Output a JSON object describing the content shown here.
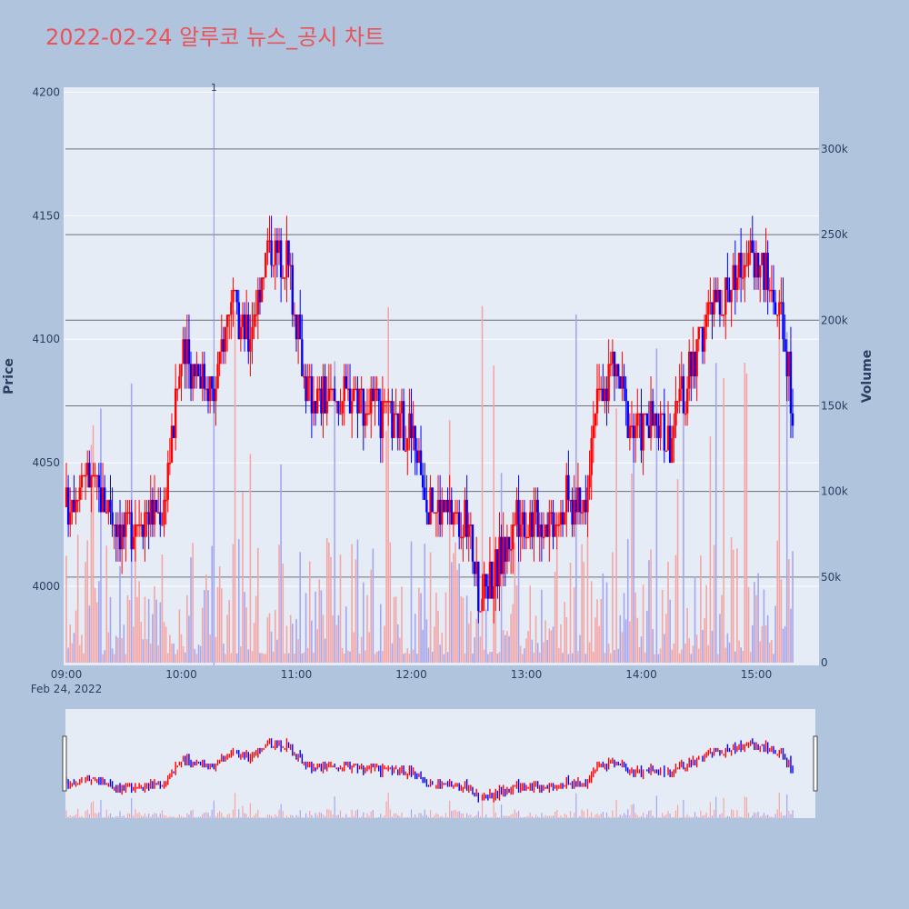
{
  "chart_data": {
    "type": "candlestick",
    "title": "2022-02-24 알루코 뉴스_공시 차트",
    "date_label": "Feb 24, 2022",
    "price_axis": {
      "label": "Price",
      "range": [
        3968,
        4202
      ],
      "ticks": [
        4000,
        4050,
        4100,
        4150,
        4200
      ]
    },
    "volume_axis": {
      "label": "Volume",
      "range": [
        0,
        335000
      ],
      "ticks": [
        "0",
        "50k",
        "100k",
        "150k",
        "200k",
        "250k",
        "300k"
      ],
      "tick_values": [
        0,
        50000,
        100000,
        150000,
        200000,
        250000,
        300000
      ]
    },
    "time_axis": {
      "range": [
        "09:00",
        "15:30"
      ],
      "ticks": [
        "09:00",
        "10:00",
        "11:00",
        "12:00",
        "13:00",
        "14:00",
        "15:00"
      ]
    },
    "news_marker": {
      "time": "10:17",
      "label": "1"
    },
    "colors": {
      "up": "#ff0000",
      "down": "#0000ff",
      "title": "#e8545a",
      "background": "#b0c4de",
      "plot": "#e5ecf6"
    },
    "series": [
      {
        "time": "09:00",
        "close": 4032
      },
      {
        "time": "09:10",
        "close": 4048
      },
      {
        "time": "09:20",
        "close": 4035
      },
      {
        "time": "09:30",
        "close": 4022
      },
      {
        "time": "09:40",
        "close": 4030
      },
      {
        "time": "09:50",
        "close": 4030
      },
      {
        "time": "10:00",
        "close": 4092
      },
      {
        "time": "10:10",
        "close": 4088
      },
      {
        "time": "10:17",
        "close": 4077
      },
      {
        "time": "10:25",
        "close": 4113
      },
      {
        "time": "10:35",
        "close": 4101
      },
      {
        "time": "10:45",
        "close": 4137
      },
      {
        "time": "10:55",
        "close": 4135
      },
      {
        "time": "11:05",
        "close": 4080
      },
      {
        "time": "11:15",
        "close": 4076
      },
      {
        "time": "11:30",
        "close": 4080
      },
      {
        "time": "11:45",
        "close": 4068
      },
      {
        "time": "12:00",
        "close": 4063
      },
      {
        "time": "12:10",
        "close": 4033
      },
      {
        "time": "12:20",
        "close": 4030
      },
      {
        "time": "12:30",
        "close": 4025
      },
      {
        "time": "12:35",
        "close": 3995
      },
      {
        "time": "12:45",
        "close": 4008
      },
      {
        "time": "12:55",
        "close": 4028
      },
      {
        "time": "13:10",
        "close": 4027
      },
      {
        "time": "13:20",
        "close": 4035
      },
      {
        "time": "13:30",
        "close": 4032
      },
      {
        "time": "13:35",
        "close": 4070
      },
      {
        "time": "13:45",
        "close": 4090
      },
      {
        "time": "13:55",
        "close": 4065
      },
      {
        "time": "14:05",
        "close": 4065
      },
      {
        "time": "14:15",
        "close": 4060
      },
      {
        "time": "14:25",
        "close": 4085
      },
      {
        "time": "14:35",
        "close": 4110
      },
      {
        "time": "14:45",
        "close": 4120
      },
      {
        "time": "14:55",
        "close": 4135
      },
      {
        "time": "15:05",
        "close": 4128
      },
      {
        "time": "15:15",
        "close": 4100
      },
      {
        "time": "15:19",
        "close": 4070
      }
    ]
  }
}
